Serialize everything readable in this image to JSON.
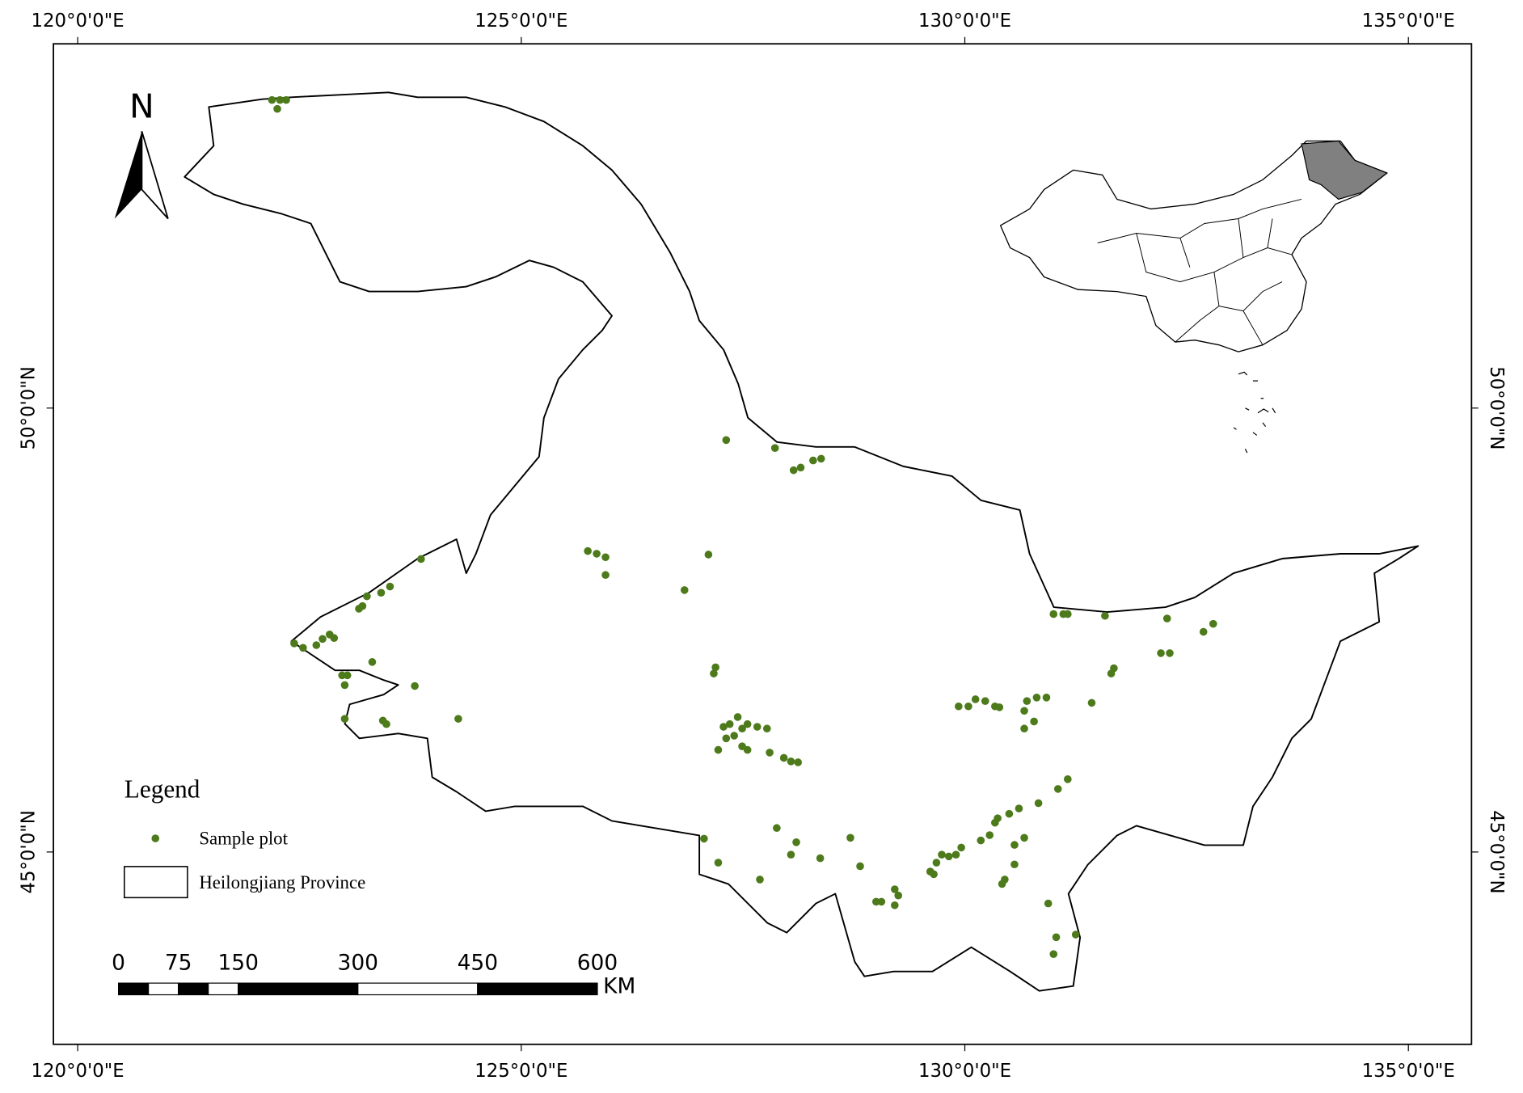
{
  "map": {
    "lon_ticks": [
      {
        "value": 120,
        "label": "120°0'0\"E"
      },
      {
        "value": 125,
        "label": "125°0'0\"E"
      },
      {
        "value": 130,
        "label": "130°0'0\"E"
      },
      {
        "value": 135,
        "label": "135°0'0\"E"
      }
    ],
    "lat_ticks": [
      {
        "value": 50,
        "label": "50°0'0\"N"
      },
      {
        "value": 45,
        "label": "45°0'0\"N"
      }
    ],
    "north_label": "N",
    "plot_color": "#4d7a1a",
    "sample_plots": [
      [
        122.19,
        53.47
      ],
      [
        122.28,
        53.47
      ],
      [
        122.35,
        53.47
      ],
      [
        122.25,
        53.37
      ],
      [
        127.31,
        49.64
      ],
      [
        127.86,
        49.55
      ],
      [
        128.07,
        49.3
      ],
      [
        128.15,
        49.33
      ],
      [
        128.29,
        49.41
      ],
      [
        128.38,
        49.43
      ],
      [
        125.75,
        48.39
      ],
      [
        125.85,
        48.36
      ],
      [
        125.95,
        48.32
      ],
      [
        125.95,
        48.12
      ],
      [
        127.11,
        48.35
      ],
      [
        126.84,
        47.95
      ],
      [
        123.87,
        48.3
      ],
      [
        123.52,
        47.99
      ],
      [
        123.42,
        47.92
      ],
      [
        123.26,
        47.88
      ],
      [
        123.21,
        47.77
      ],
      [
        123.17,
        47.74
      ],
      [
        122.44,
        47.35
      ],
      [
        122.54,
        47.3
      ],
      [
        122.69,
        47.33
      ],
      [
        122.76,
        47.4
      ],
      [
        122.84,
        47.45
      ],
      [
        122.89,
        47.41
      ],
      [
        122.98,
        46.99
      ],
      [
        123.04,
        46.99
      ],
      [
        123.01,
        46.88
      ],
      [
        123.32,
        47.14
      ],
      [
        123.8,
        46.87
      ],
      [
        124.29,
        46.5
      ],
      [
        123.01,
        46.5
      ],
      [
        123.44,
        46.48
      ],
      [
        123.48,
        46.44
      ],
      [
        127.19,
        47.08
      ],
      [
        127.17,
        47.01
      ],
      [
        127.28,
        46.41
      ],
      [
        127.35,
        46.44
      ],
      [
        127.44,
        46.52
      ],
      [
        127.49,
        46.39
      ],
      [
        127.55,
        46.44
      ],
      [
        127.66,
        46.41
      ],
      [
        127.77,
        46.39
      ],
      [
        127.31,
        46.28
      ],
      [
        127.4,
        46.31
      ],
      [
        127.49,
        46.19
      ],
      [
        127.22,
        46.15
      ],
      [
        127.55,
        46.15
      ],
      [
        127.8,
        46.12
      ],
      [
        127.96,
        46.06
      ],
      [
        128.04,
        46.02
      ],
      [
        128.12,
        46.01
      ],
      [
        129.93,
        46.64
      ],
      [
        130.04,
        46.64
      ],
      [
        130.12,
        46.72
      ],
      [
        130.23,
        46.7
      ],
      [
        130.34,
        46.64
      ],
      [
        130.39,
        46.63
      ],
      [
        130.7,
        46.7
      ],
      [
        130.81,
        46.74
      ],
      [
        130.92,
        46.74
      ],
      [
        130.67,
        46.59
      ],
      [
        130.78,
        46.47
      ],
      [
        130.67,
        46.39
      ],
      [
        131.0,
        47.68
      ],
      [
        131.11,
        47.68
      ],
      [
        131.16,
        47.68
      ],
      [
        131.58,
        47.66
      ],
      [
        132.28,
        47.63
      ],
      [
        132.69,
        47.48
      ],
      [
        132.8,
        47.57
      ],
      [
        132.21,
        47.24
      ],
      [
        132.31,
        47.24
      ],
      [
        131.68,
        47.07
      ],
      [
        131.65,
        47.01
      ],
      [
        131.43,
        46.68
      ],
      [
        131.16,
        45.82
      ],
      [
        131.05,
        45.71
      ],
      [
        130.83,
        45.55
      ],
      [
        130.61,
        45.49
      ],
      [
        130.5,
        45.43
      ],
      [
        130.37,
        45.38
      ],
      [
        130.34,
        45.33
      ],
      [
        130.28,
        45.19
      ],
      [
        130.18,
        45.13
      ],
      [
        129.96,
        45.05
      ],
      [
        129.9,
        44.97
      ],
      [
        129.82,
        44.95
      ],
      [
        129.74,
        44.97
      ],
      [
        129.68,
        44.88
      ],
      [
        129.61,
        44.78
      ],
      [
        129.65,
        44.75
      ],
      [
        130.67,
        45.16
      ],
      [
        130.56,
        45.08
      ],
      [
        130.56,
        44.86
      ],
      [
        130.45,
        44.69
      ],
      [
        130.42,
        44.64
      ],
      [
        130.94,
        44.42
      ],
      [
        131.03,
        44.04
      ],
      [
        131.0,
        43.85
      ],
      [
        131.25,
        44.07
      ],
      [
        127.88,
        45.27
      ],
      [
        128.1,
        45.11
      ],
      [
        128.04,
        44.97
      ],
      [
        127.06,
        45.15
      ],
      [
        127.22,
        44.88
      ],
      [
        127.69,
        44.69
      ],
      [
        128.37,
        44.93
      ],
      [
        128.71,
        45.16
      ],
      [
        128.82,
        44.84
      ],
      [
        129.0,
        44.44
      ],
      [
        129.06,
        44.44
      ],
      [
        129.21,
        44.58
      ],
      [
        129.25,
        44.51
      ],
      [
        129.21,
        44.4
      ]
    ]
  },
  "legend": {
    "title": "Legend",
    "items": [
      "Sample plot",
      "Heilongjiang Province"
    ]
  },
  "scale_bar": {
    "ticks": [
      0,
      75,
      150,
      300,
      450,
      600
    ],
    "unit": "KM"
  }
}
